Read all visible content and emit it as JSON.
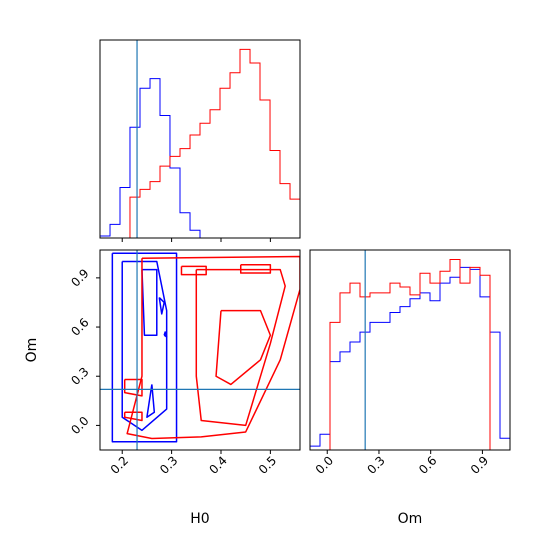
{
  "chart_data": {
    "type": "corner",
    "parameters": [
      "H0",
      "Om"
    ],
    "truths": {
      "H0": 0.23,
      "Om": 0.22
    },
    "series": [
      {
        "color": "#0000ff"
      },
      {
        "color": "#ff0000"
      }
    ],
    "truth_color": "#1f77b4",
    "panels": [
      {
        "id": "hist-H0",
        "type": "histogram",
        "xlim": [
          0.155,
          0.56
        ],
        "x_ticks": [
          0.2,
          0.3,
          0.4,
          0.5
        ],
        "x_tick_labels_shown": false,
        "y_tick_labels_shown": false,
        "truth_x": 0.23,
        "series": [
          {
            "color": "#0000ff",
            "bin_edges": [
              0.155,
              0.1753,
              0.1955,
              0.2157,
              0.236,
              0.2563,
              0.2765,
              0.2967,
              0.317,
              0.3373,
              0.3575,
              0.3778,
              0.398,
              0.4183,
              0.4385,
              0.4588,
              0.479,
              0.4993,
              0.5195,
              0.5398,
              0.56
            ],
            "counts": [
              0.01,
              0.07,
              0.26,
              0.57,
              0.77,
              0.82,
              0.63,
              0.36,
              0.13,
              0.04,
              0.0,
              0.0,
              0.0,
              0.0,
              0.0,
              0.0,
              0.0,
              0.0,
              0.0,
              0.0
            ]
          },
          {
            "color": "#ff0000",
            "bin_edges": [
              0.155,
              0.1753,
              0.1955,
              0.2157,
              0.236,
              0.2563,
              0.2765,
              0.2967,
              0.317,
              0.3373,
              0.3575,
              0.3778,
              0.398,
              0.4183,
              0.4385,
              0.4588,
              0.479,
              0.4993,
              0.5195,
              0.5398,
              0.56
            ],
            "counts": [
              0.0,
              0.0,
              0.0,
              0.21,
              0.25,
              0.29,
              0.37,
              0.42,
              0.46,
              0.53,
              0.59,
              0.66,
              0.77,
              0.85,
              0.97,
              0.9,
              0.71,
              0.45,
              0.28,
              0.2
            ]
          }
        ]
      },
      {
        "id": "hist-Om",
        "type": "histogram",
        "xlim": [
          -0.1,
          1.06
        ],
        "x_ticks": [
          0.0,
          0.3,
          0.6,
          0.9
        ],
        "x_tick_labels": [
          "0.0",
          "0.3",
          "0.6",
          "0.9"
        ],
        "y_tick_labels_shown": false,
        "truth_x": 0.22,
        "series": [
          {
            "color": "#0000ff",
            "bin_edges": [
              -0.1,
              -0.042,
              0.016,
              0.074,
              0.132,
              0.19,
              0.248,
              0.306,
              0.364,
              0.422,
              0.48,
              0.538,
              0.596,
              0.654,
              0.712,
              0.77,
              0.828,
              0.886,
              0.944,
              1.002,
              1.06
            ],
            "counts": [
              0.02,
              0.08,
              0.45,
              0.5,
              0.55,
              0.6,
              0.65,
              0.65,
              0.7,
              0.73,
              0.77,
              0.8,
              0.76,
              0.85,
              0.88,
              0.93,
              0.92,
              0.78,
              0.6,
              0.06
            ]
          },
          {
            "color": "#ff0000",
            "bin_edges": [
              -0.1,
              -0.042,
              0.016,
              0.074,
              0.132,
              0.19,
              0.248,
              0.306,
              0.364,
              0.422,
              0.48,
              0.538,
              0.596,
              0.654,
              0.712,
              0.77,
              0.828,
              0.886,
              0.944,
              1.002,
              1.06
            ],
            "counts": [
              0.0,
              0.0,
              0.65,
              0.8,
              0.85,
              0.78,
              0.8,
              0.8,
              0.85,
              0.83,
              0.79,
              0.9,
              0.85,
              0.91,
              0.97,
              0.85,
              0.93,
              0.89,
              0.0,
              0.0
            ]
          }
        ]
      },
      {
        "id": "contour-Om-vs-H0",
        "type": "contour",
        "xlim": [
          0.155,
          0.56
        ],
        "ylim": [
          -0.15,
          1.07
        ],
        "x_ticks": [
          0.2,
          0.3,
          0.4,
          0.5
        ],
        "x_tick_labels": [
          "0.2",
          "0.3",
          "0.4",
          "0.5"
        ],
        "y_ticks": [
          0.0,
          0.3,
          0.6,
          0.9
        ],
        "y_tick_labels": [
          "0.0",
          "0.3",
          "0.6",
          "0.9"
        ],
        "xlabel": "H0",
        "ylabel": "Om",
        "truth_x": 0.23,
        "truth_y": 0.22,
        "series": [
          {
            "color": "#0000ff",
            "contours": [
              [
                [
                  0.18,
                  1.05
                ],
                [
                  0.31,
                  1.05
                ],
                [
                  0.31,
                  -0.1
                ],
                [
                  0.18,
                  -0.1
                ],
                [
                  0.18,
                  1.05
                ]
              ],
              [
                [
                  0.2,
                  1.0
                ],
                [
                  0.27,
                  1.0
                ],
                [
                  0.29,
                  0.7
                ],
                [
                  0.29,
                  0.1
                ],
                [
                  0.24,
                  -0.03
                ],
                [
                  0.2,
                  0.05
                ],
                [
                  0.2,
                  0.4
                ],
                [
                  0.2,
                  1.0
                ]
              ],
              [
                [
                  0.24,
                  0.95
                ],
                [
                  0.27,
                  0.95
                ],
                [
                  0.27,
                  0.55
                ],
                [
                  0.245,
                  0.55
                ],
                [
                  0.24,
                  0.95
                ]
              ],
              [
                [
                  0.26,
                  0.25
                ],
                [
                  0.25,
                  0.05
                ],
                [
                  0.265,
                  0.08
                ],
                [
                  0.26,
                  0.25
                ]
              ],
              [
                [
                  0.275,
                  0.78
                ],
                [
                  0.28,
                  0.68
                ],
                [
                  0.285,
                  0.75
                ],
                [
                  0.275,
                  0.78
                ]
              ],
              [
                [
                  0.285,
                  0.55
                ],
                [
                  0.29,
                  0.54
                ],
                [
                  0.287,
                  0.57
                ],
                [
                  0.285,
                  0.55
                ]
              ]
            ]
          },
          {
            "color": "#ff0000",
            "contours": [
              [
                [
                  0.24,
                  1.02
                ],
                [
                  0.56,
                  1.03
                ],
                [
                  0.56,
                  0.83
                ],
                [
                  0.52,
                  0.4
                ],
                [
                  0.45,
                  -0.04
                ],
                [
                  0.36,
                  -0.07
                ],
                [
                  0.26,
                  -0.08
                ],
                [
                  0.21,
                  -0.05
                ],
                [
                  0.24,
                  0.3
                ],
                [
                  0.24,
                  1.02
                ]
              ],
              [
                [
                  0.35,
                  0.95
                ],
                [
                  0.52,
                  0.95
                ],
                [
                  0.53,
                  0.85
                ],
                [
                  0.5,
                  0.5
                ],
                [
                  0.45,
                  0.0
                ],
                [
                  0.36,
                  0.03
                ],
                [
                  0.35,
                  0.3
                ],
                [
                  0.35,
                  0.95
                ]
              ],
              [
                [
                  0.4,
                  0.7
                ],
                [
                  0.48,
                  0.7
                ],
                [
                  0.5,
                  0.55
                ],
                [
                  0.48,
                  0.4
                ],
                [
                  0.42,
                  0.25
                ],
                [
                  0.39,
                  0.3
                ],
                [
                  0.4,
                  0.7
                ]
              ],
              [
                [
                  0.44,
                  0.98
                ],
                [
                  0.5,
                  0.98
                ],
                [
                  0.5,
                  0.93
                ],
                [
                  0.44,
                  0.93
                ],
                [
                  0.44,
                  0.98
                ]
              ],
              [
                [
                  0.205,
                  0.28
                ],
                [
                  0.24,
                  0.28
                ],
                [
                  0.24,
                  0.18
                ],
                [
                  0.205,
                  0.2
                ],
                [
                  0.205,
                  0.28
                ]
              ],
              [
                [
                  0.205,
                  0.08
                ],
                [
                  0.24,
                  0.08
                ],
                [
                  0.24,
                  0.03
                ],
                [
                  0.205,
                  0.05
                ],
                [
                  0.205,
                  0.08
                ]
              ],
              [
                [
                  0.32,
                  0.97
                ],
                [
                  0.37,
                  0.97
                ],
                [
                  0.37,
                  0.92
                ],
                [
                  0.32,
                  0.92
                ],
                [
                  0.32,
                  0.97
                ]
              ]
            ]
          }
        ]
      }
    ]
  }
}
